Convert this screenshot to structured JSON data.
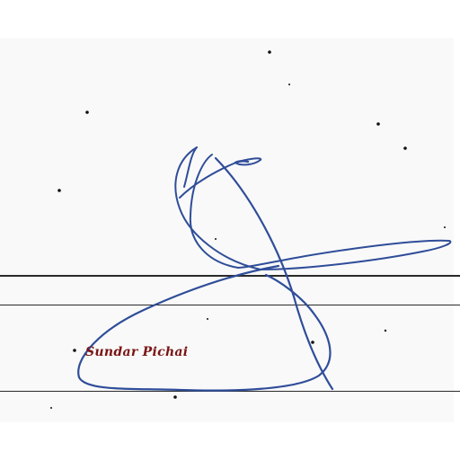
{
  "signature": {
    "caption": "Sundar Pichai",
    "ink_color": "#2f4d99",
    "caption_color": "#7a1414"
  },
  "paper": {
    "background": "#f9f9f9",
    "rule_color": "#2a2a2a"
  }
}
